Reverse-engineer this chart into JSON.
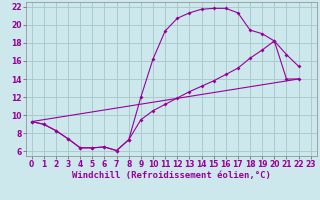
{
  "xlabel": "Windchill (Refroidissement éolien,°C)",
  "bg_color": "#cce8ec",
  "grid_color": "#aacccc",
  "line_color": "#990099",
  "xlim": [
    -0.5,
    23.5
  ],
  "ylim": [
    5.5,
    22.5
  ],
  "xticks": [
    0,
    1,
    2,
    3,
    4,
    5,
    6,
    7,
    8,
    9,
    10,
    11,
    12,
    13,
    14,
    15,
    16,
    17,
    18,
    19,
    20,
    21,
    22,
    23
  ],
  "yticks": [
    6,
    8,
    10,
    12,
    14,
    16,
    18,
    20,
    22
  ],
  "line1_x": [
    0,
    1,
    2,
    3,
    4,
    5,
    6,
    7,
    8,
    9,
    10,
    11,
    12,
    13,
    14,
    15,
    16,
    17,
    18,
    19,
    20,
    21,
    22
  ],
  "line1_y": [
    9.3,
    9.0,
    8.3,
    7.4,
    6.4,
    6.4,
    6.5,
    6.1,
    7.3,
    12.0,
    16.2,
    19.3,
    20.7,
    21.3,
    21.7,
    21.8,
    21.8,
    21.3,
    19.4,
    19.0,
    18.2,
    16.7,
    15.4
  ],
  "line2_x": [
    0,
    1,
    2,
    3,
    4,
    5,
    6,
    7,
    8,
    9,
    10,
    11,
    12,
    13,
    14,
    15,
    16,
    17,
    18,
    19,
    20,
    21,
    22
  ],
  "line2_y": [
    9.3,
    9.0,
    8.3,
    7.4,
    6.4,
    6.4,
    6.5,
    6.1,
    7.3,
    9.5,
    10.5,
    11.2,
    11.9,
    12.6,
    13.2,
    13.8,
    14.5,
    15.2,
    16.3,
    17.2,
    18.2,
    14.0,
    14.0
  ],
  "line3_x": [
    0,
    22
  ],
  "line3_y": [
    9.3,
    14.0
  ],
  "tick_fontsize": 5.5,
  "xlabel_fontsize": 6.5
}
